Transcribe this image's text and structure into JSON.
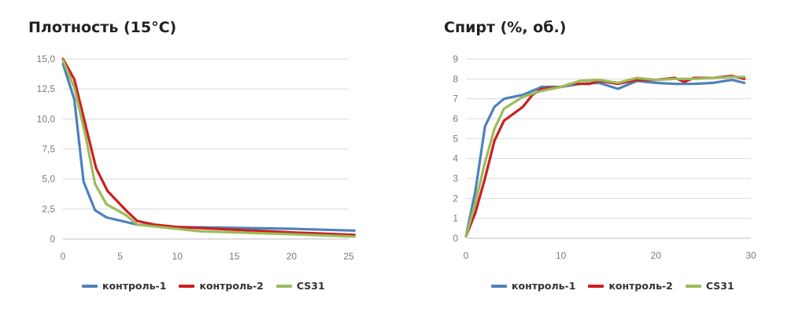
{
  "chart_data": [
    {
      "type": "line",
      "title": "Плотность (15°C)",
      "xlim": [
        0,
        25
      ],
      "ylim": [
        0,
        15
      ],
      "x_ticks": [
        0,
        5,
        10,
        15,
        20,
        25
      ],
      "y_ticks": [
        0,
        2.5,
        5,
        7.5,
        10,
        12.5,
        15
      ],
      "x_tick_labels": [
        "0",
        "5",
        "10",
        "15",
        "20",
        "25"
      ],
      "y_tick_labels": [
        "0",
        "2,5",
        "5,0",
        "7,5",
        "10,0",
        "12,5",
        "15,0"
      ],
      "grid": "horizontal",
      "legend": "bottom",
      "series": [
        {
          "name": "контроль-1",
          "color": "#4e81bd",
          "points": [
            [
              0,
              14.6
            ],
            [
              1,
              11.6
            ],
            [
              1.8,
              4.8
            ],
            [
              2.8,
              2.4
            ],
            [
              3.8,
              1.8
            ],
            [
              6.5,
              1.2
            ],
            [
              10,
              1.0
            ],
            [
              20,
              0.85
            ],
            [
              25.5,
              0.7
            ]
          ]
        },
        {
          "name": "контроль-2",
          "color": "#cc1f1f",
          "points": [
            [
              0,
              15.0
            ],
            [
              1,
              13.3
            ],
            [
              2,
              9.4
            ],
            [
              2.9,
              5.9
            ],
            [
              3.9,
              4.0
            ],
            [
              5.5,
              2.4
            ],
            [
              6.5,
              1.5
            ],
            [
              8,
              1.2
            ],
            [
              10,
              1.0
            ],
            [
              20,
              0.55
            ],
            [
              25.5,
              0.35
            ]
          ]
        },
        {
          "name": "CS31",
          "color": "#9bbb59",
          "points": [
            [
              0,
              14.9
            ],
            [
              1,
              12.6
            ],
            [
              2,
              8.5
            ],
            [
              2.8,
              4.6
            ],
            [
              3.8,
              2.9
            ],
            [
              5.5,
              2.0
            ],
            [
              6.5,
              1.2
            ],
            [
              12,
              0.65
            ],
            [
              20,
              0.4
            ],
            [
              25.5,
              0.2
            ]
          ]
        }
      ]
    },
    {
      "type": "line",
      "title": "Спирт (%, об.)",
      "xlim": [
        0,
        30
      ],
      "ylim": [
        0,
        9
      ],
      "x_ticks": [
        0,
        10,
        20,
        30
      ],
      "y_ticks": [
        0,
        1,
        2,
        3,
        4,
        5,
        6,
        7,
        8,
        9
      ],
      "x_tick_labels": [
        "0",
        "10",
        "20",
        "30"
      ],
      "y_tick_labels": [
        "0",
        "1",
        "2",
        "3",
        "4",
        "5",
        "6",
        "7",
        "8",
        "9"
      ],
      "grid": "horizontal",
      "legend": "bottom",
      "series": [
        {
          "name": "контроль-1",
          "color": "#4e81bd",
          "points": [
            [
              0,
              0.1
            ],
            [
              1,
              2.4
            ],
            [
              2,
              5.6
            ],
            [
              3,
              6.6
            ],
            [
              4,
              7.0
            ],
            [
              6,
              7.2
            ],
            [
              8,
              7.6
            ],
            [
              10,
              7.6
            ],
            [
              12,
              7.75
            ],
            [
              14,
              7.8
            ],
            [
              16,
              7.5
            ],
            [
              18,
              7.9
            ],
            [
              20,
              7.8
            ],
            [
              22,
              7.75
            ],
            [
              24,
              7.75
            ],
            [
              26,
              7.8
            ],
            [
              28,
              7.95
            ],
            [
              29.3,
              7.8
            ]
          ]
        },
        {
          "name": "контроль-2",
          "color": "#cc1f1f",
          "points": [
            [
              0,
              0.1
            ],
            [
              1,
              1.3
            ],
            [
              2,
              3.0
            ],
            [
              3,
              4.9
            ],
            [
              4,
              5.9
            ],
            [
              6,
              6.6
            ],
            [
              7,
              7.2
            ],
            [
              8,
              7.5
            ],
            [
              10,
              7.6
            ],
            [
              11,
              7.75
            ],
            [
              13,
              7.75
            ],
            [
              14,
              7.9
            ],
            [
              16,
              7.75
            ],
            [
              18,
              7.95
            ],
            [
              20,
              7.95
            ],
            [
              22,
              8.05
            ],
            [
              23,
              7.85
            ],
            [
              24,
              8.05
            ],
            [
              26,
              8.05
            ],
            [
              28,
              8.15
            ],
            [
              29.3,
              8.0
            ]
          ]
        },
        {
          "name": "CS31",
          "color": "#9bbb59",
          "points": [
            [
              0,
              0.1
            ],
            [
              1,
              1.8
            ],
            [
              2,
              3.8
            ],
            [
              3,
              5.5
            ],
            [
              4,
              6.5
            ],
            [
              6,
              7.1
            ],
            [
              8,
              7.4
            ],
            [
              10,
              7.6
            ],
            [
              12,
              7.9
            ],
            [
              14,
              7.95
            ],
            [
              16,
              7.8
            ],
            [
              18,
              8.05
            ],
            [
              20,
              7.95
            ],
            [
              22,
              8.0
            ],
            [
              24,
              8.0
            ],
            [
              26,
              8.05
            ],
            [
              28,
              8.1
            ],
            [
              29.3,
              8.1
            ]
          ]
        }
      ]
    }
  ]
}
